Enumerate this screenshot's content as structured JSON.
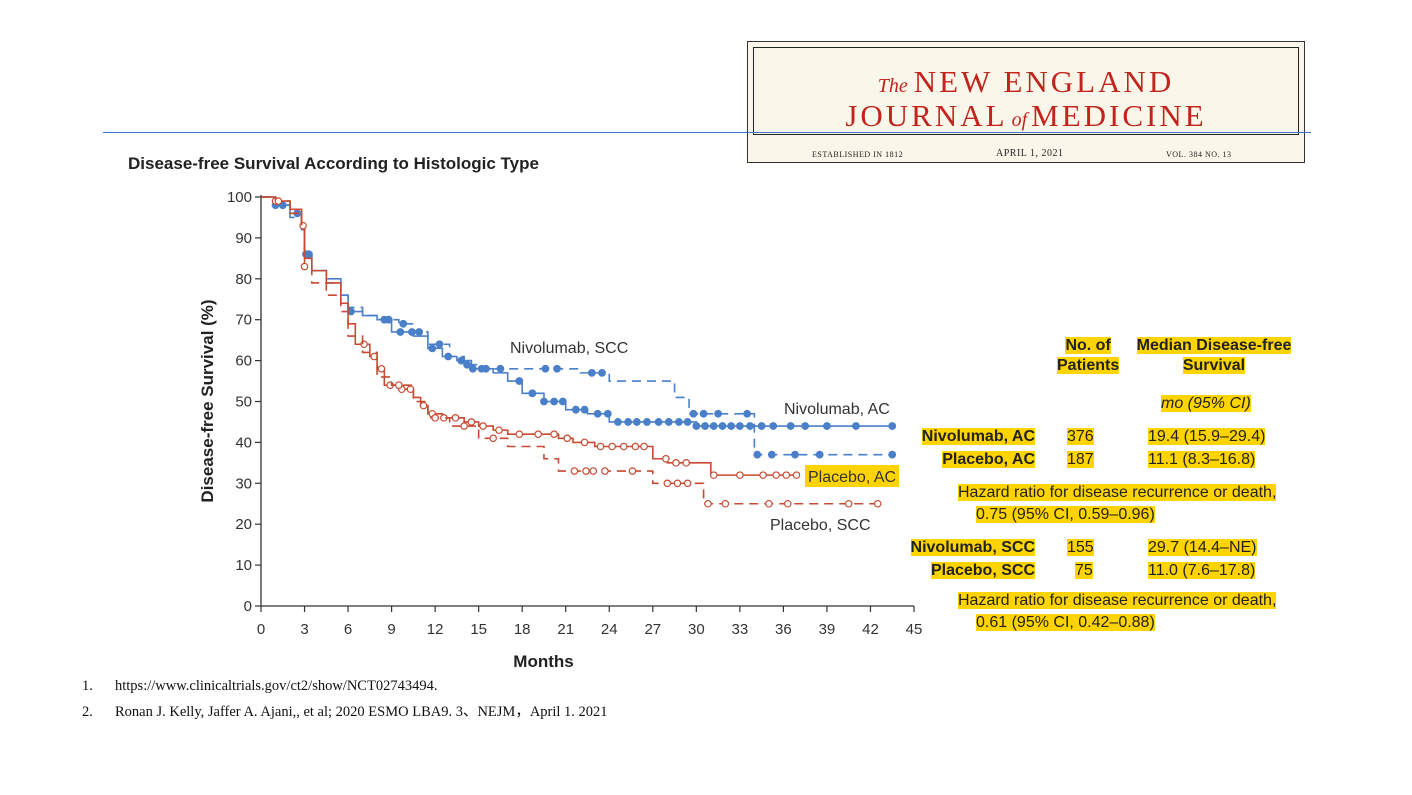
{
  "masthead": {
    "the": "The",
    "title1": "NEW ENGLAND",
    "journal": "JOURNAL",
    "of": "of",
    "medicine": "MEDICINE",
    "established": "ESTABLISHED IN 1812",
    "date": "APRIL 1, 2021",
    "volume": "VOL. 384   NO. 13"
  },
  "colors": {
    "nivolumab": "#4a7fc9",
    "placebo": "#c84a32",
    "highlight": "#ffd400",
    "rule": "#4472c4"
  },
  "table": {
    "header_patients": [
      "No. of",
      "Patients"
    ],
    "header_median": [
      "Median Disease-free",
      "Survival"
    ],
    "subheader": "mo (95% CI)",
    "rows": [
      {
        "group": "Nivolumab, AC",
        "n": "376",
        "median": "19.4 (15.9–29.4)"
      },
      {
        "group": "Placebo, AC",
        "n": "187",
        "median": "11.1 (8.3–16.8)"
      },
      {
        "group": "Nivolumab, SCC",
        "n": "155",
        "median": "29.7 (14.4–NE)"
      },
      {
        "group": "Placebo, SCC",
        "n": "75",
        "median": "11.0 (7.6–17.8)"
      }
    ],
    "hr_label": "Hazard ratio for disease recurrence or death,",
    "hr_ac": "0.75 (95% CI, 0.59–0.96)",
    "hr_scc": "0.61 (95% CI, 0.42–0.88)"
  },
  "references": [
    {
      "num": "1.",
      "text": "https://www.clinicaltrials.gov/ct2/show/NCT02743494."
    },
    {
      "num": "2.",
      "text": "Ronan J. Kelly, Jaffer A. Ajani,, et al; 2020 ESMO LBA9. 3、NEJM，April 1. 2021"
    }
  ],
  "chart_data": {
    "type": "line",
    "title": "Disease-free Survival According to Histologic Type",
    "xlabel": "Months",
    "ylabel": "Disease-free Survival (%)",
    "xlim": [
      0,
      45
    ],
    "ylim": [
      0,
      100
    ],
    "xticks": [
      0,
      3,
      6,
      9,
      12,
      15,
      18,
      21,
      24,
      27,
      30,
      33,
      36,
      39,
      42,
      45
    ],
    "yticks": [
      0,
      10,
      20,
      30,
      40,
      50,
      60,
      70,
      80,
      90,
      100
    ],
    "series": [
      {
        "name": "Nivolumab, AC",
        "color": "#4a7fc9",
        "dash": "solid",
        "points": [
          [
            0,
            100
          ],
          [
            1,
            98
          ],
          [
            2,
            96
          ],
          [
            2.8,
            92
          ],
          [
            3,
            86
          ],
          [
            3.5,
            82
          ],
          [
            4.5,
            80
          ],
          [
            5.5,
            76
          ],
          [
            6,
            72
          ],
          [
            7,
            71
          ],
          [
            8,
            70
          ],
          [
            9,
            67
          ],
          [
            10.5,
            66
          ],
          [
            11.5,
            63
          ],
          [
            12.5,
            61
          ],
          [
            13.5,
            60
          ],
          [
            14.5,
            58
          ],
          [
            16,
            57
          ],
          [
            17,
            55
          ],
          [
            18,
            52
          ],
          [
            19.5,
            50
          ],
          [
            21,
            48
          ],
          [
            22.5,
            47
          ],
          [
            24,
            45
          ],
          [
            26,
            45
          ],
          [
            28,
            45
          ],
          [
            30,
            44
          ],
          [
            33,
            44
          ],
          [
            36,
            44
          ],
          [
            39,
            44
          ],
          [
            43.5,
            44
          ]
        ],
        "censor": [
          1,
          2.5,
          3.1,
          3.3,
          6.2,
          8.5,
          9.6,
          10.4,
          11.8,
          12.9,
          13.8,
          14.6,
          15.5,
          17.8,
          18.7,
          19.5,
          20.2,
          20.8,
          21.7,
          22.3,
          23.2,
          23.9,
          24.6,
          25.3,
          25.9,
          26.6,
          27.4,
          28.1,
          28.8,
          29.4,
          30,
          30.6,
          31.2,
          31.8,
          32.4,
          33,
          33.7,
          34.5,
          35.3,
          36.5,
          37.5,
          39,
          41,
          43.5
        ]
      },
      {
        "name": "Nivolumab, SCC",
        "color": "#4a7fc9",
        "dash": "dashed",
        "points": [
          [
            0,
            100
          ],
          [
            1,
            98
          ],
          [
            2,
            95
          ],
          [
            2.8,
            92
          ],
          [
            3,
            86
          ],
          [
            3.5,
            82
          ],
          [
            4.5,
            79
          ],
          [
            5.5,
            76
          ],
          [
            6,
            73
          ],
          [
            7,
            71
          ],
          [
            8,
            70
          ],
          [
            9.5,
            69
          ],
          [
            10.5,
            67
          ],
          [
            11.5,
            64
          ],
          [
            13,
            61
          ],
          [
            14,
            59
          ],
          [
            15,
            58
          ],
          [
            16,
            58
          ],
          [
            19,
            58
          ],
          [
            22,
            57
          ],
          [
            24,
            55
          ],
          [
            27,
            55
          ],
          [
            28.5,
            51
          ],
          [
            29.5,
            47
          ],
          [
            32,
            47
          ],
          [
            34,
            37
          ],
          [
            36,
            37
          ],
          [
            43.5,
            37
          ]
        ],
        "censor": [
          1.5,
          3.2,
          8.8,
          9.8,
          10.9,
          12.3,
          14.2,
          15.2,
          16.5,
          19.6,
          20.4,
          22.8,
          23.5,
          29.8,
          30.5,
          31.5,
          33.5,
          34.2,
          35.2,
          36.8,
          38.5,
          43.5
        ]
      },
      {
        "name": "Placebo, AC",
        "color": "#c84a32",
        "dash": "solid",
        "points": [
          [
            0,
            100
          ],
          [
            1,
            99
          ],
          [
            2,
            97
          ],
          [
            2.8,
            93
          ],
          [
            3,
            85
          ],
          [
            3.5,
            82
          ],
          [
            4.5,
            79
          ],
          [
            5.5,
            74
          ],
          [
            6,
            69
          ],
          [
            6.5,
            64
          ],
          [
            7.5,
            61
          ],
          [
            8,
            58
          ],
          [
            8.5,
            54
          ],
          [
            9.5,
            53
          ],
          [
            10.5,
            51
          ],
          [
            11,
            49
          ],
          [
            11.5,
            47
          ],
          [
            12.5,
            46
          ],
          [
            14,
            45
          ],
          [
            15,
            44
          ],
          [
            16,
            43
          ],
          [
            17,
            42
          ],
          [
            19,
            42
          ],
          [
            20.5,
            41
          ],
          [
            21.5,
            40
          ],
          [
            23,
            39
          ],
          [
            26,
            39
          ],
          [
            27,
            36
          ],
          [
            28,
            35
          ],
          [
            30,
            35
          ],
          [
            31,
            32
          ],
          [
            34,
            32
          ],
          [
            37,
            32
          ]
        ],
        "censor": [
          1,
          2.9,
          7.1,
          7.8,
          8.3,
          8.9,
          9.7,
          10.3,
          11.2,
          11.8,
          12.6,
          13.4,
          14.5,
          15.3,
          16.4,
          17.8,
          19.1,
          20.2,
          21.1,
          22.3,
          23.4,
          24.2,
          25,
          25.8,
          26.4,
          27.9,
          28.6,
          29.3,
          31.2,
          33,
          34.6,
          35.5,
          36.2,
          36.9
        ]
      },
      {
        "name": "Placebo, SCC",
        "color": "#c84a32",
        "dash": "dashed",
        "points": [
          [
            0,
            100
          ],
          [
            1,
            99
          ],
          [
            2,
            96
          ],
          [
            2.8,
            92
          ],
          [
            3,
            83
          ],
          [
            3.5,
            79
          ],
          [
            4.5,
            76
          ],
          [
            5.5,
            72
          ],
          [
            6,
            66
          ],
          [
            7,
            62
          ],
          [
            8,
            56
          ],
          [
            9,
            54
          ],
          [
            10.5,
            50
          ],
          [
            11.5,
            46
          ],
          [
            13,
            44
          ],
          [
            15,
            41
          ],
          [
            17,
            39
          ],
          [
            19.5,
            36
          ],
          [
            20.5,
            33
          ],
          [
            24,
            33
          ],
          [
            26,
            33
          ],
          [
            27,
            30
          ],
          [
            29,
            30
          ],
          [
            30.5,
            25
          ],
          [
            42.5,
            25
          ]
        ],
        "censor": [
          1.2,
          3,
          9.5,
          12,
          14,
          16,
          21.6,
          22.4,
          22.9,
          23.7,
          25.6,
          28,
          28.7,
          29.4,
          30.8,
          32,
          35,
          36.3,
          40.5,
          42.5
        ]
      }
    ],
    "annotations": [
      "Nivolumab, SCC",
      "Nivolumab, AC",
      "Placebo, AC",
      "Placebo, SCC"
    ]
  }
}
